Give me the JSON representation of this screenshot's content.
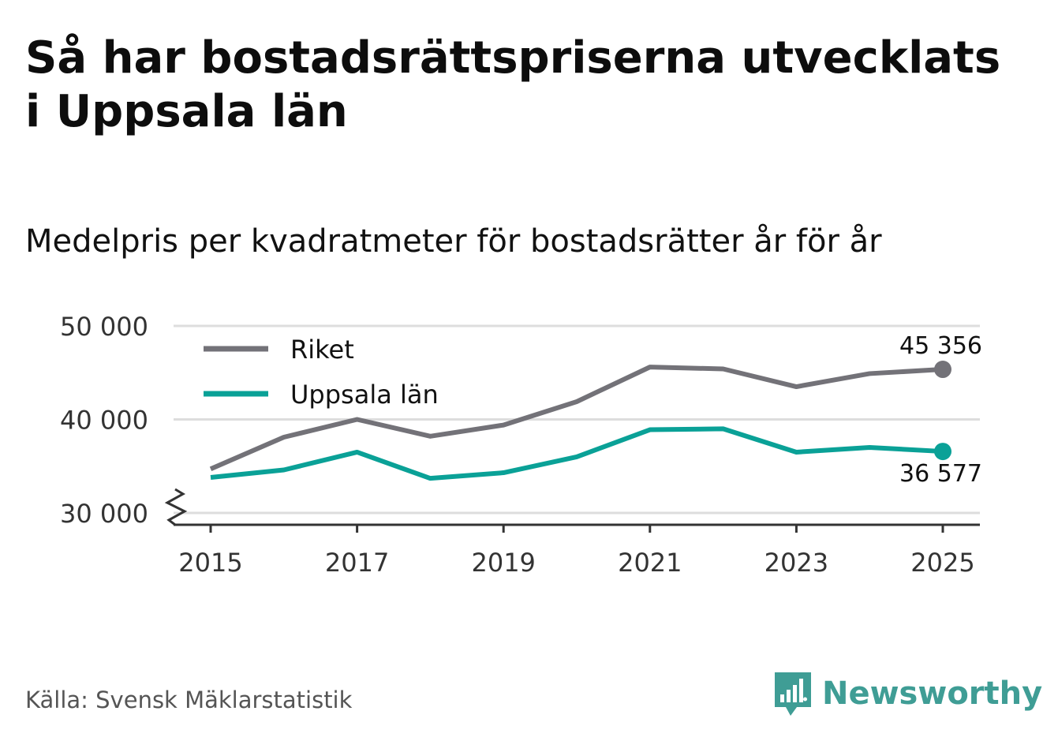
{
  "title": "Så har bostadsrättspriserna utvecklats i Uppsala län",
  "subtitle": "Medelpris per kvadratmeter för bostadsrätter år för år",
  "source": "Källa: Svensk Mäklarstatistik",
  "brand": "Newsworthy",
  "colors": {
    "riket": "#737278",
    "uppsala": "#0aa197",
    "grid": "#dddddd",
    "axis": "#333333",
    "brand": "#3f9d95"
  },
  "chart_data": {
    "type": "line",
    "title": "Så har bostadsrättspriserna utvecklats i Uppsala län",
    "subtitle": "Medelpris per kvadratmeter för bostadsrätter år för år",
    "x": [
      2015,
      2016,
      2017,
      2018,
      2019,
      2020,
      2021,
      2022,
      2023,
      2024,
      2025
    ],
    "xticks": [
      "2015",
      "2017",
      "2019",
      "2021",
      "2023",
      "2025"
    ],
    "yticks": [
      "30 000",
      "40 000",
      "50 000"
    ],
    "ylim": [
      30000,
      50000
    ],
    "legend_position": "top-left",
    "series": [
      {
        "name": "Riket",
        "color": "#737278",
        "values": [
          34700,
          38100,
          40000,
          38200,
          39400,
          41900,
          45600,
          45400,
          43500,
          44900,
          45356
        ],
        "end_label": "45 356"
      },
      {
        "name": "Uppsala län",
        "color": "#0aa197",
        "values": [
          33800,
          34600,
          36500,
          33700,
          34300,
          36000,
          38900,
          39000,
          36500,
          37000,
          36577
        ],
        "end_label": "36 577"
      }
    ]
  }
}
